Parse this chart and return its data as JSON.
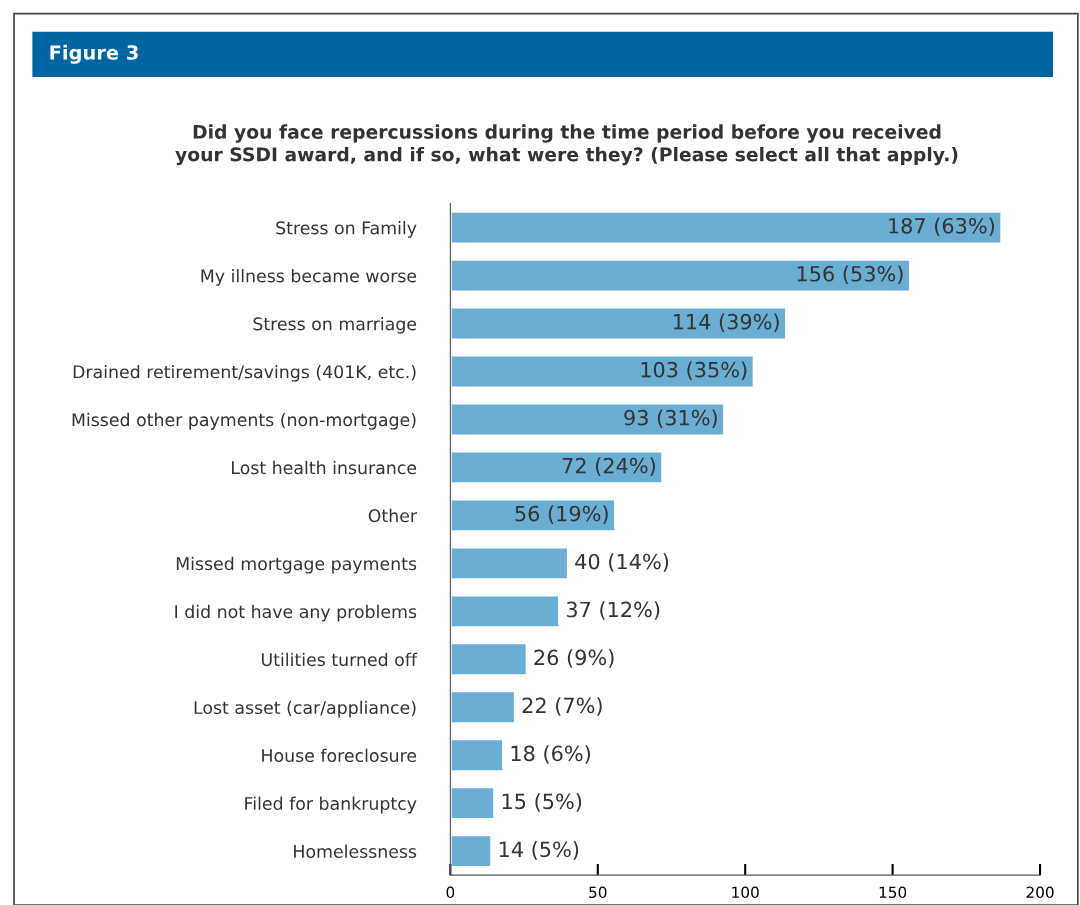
{
  "chart_data": {
    "type": "bar",
    "orientation": "horizontal",
    "title": "Figure 3",
    "subtitle": "Did you face repercussions during the time period before you received\nyour SSDI award, and if so, what were they? (Please select all that apply.)",
    "categories": [
      "Stress on Family",
      "My illness became worse",
      "Stress on marriage",
      "Drained retirement/savings (401K, etc.)",
      "Missed other payments (non-mortgage)",
      "Lost health insurance",
      "Other",
      "Missed mortgage payments",
      "I did not have any problems",
      "Utilities turned off",
      "Lost asset (car/appliance)",
      "House foreclosure",
      "Filed for bankruptcy",
      "Homelessness"
    ],
    "values": [
      187,
      156,
      114,
      103,
      93,
      72,
      56,
      40,
      37,
      26,
      22,
      18,
      15,
      14
    ],
    "value_labels": [
      "187 (63%)",
      "156 (53%)",
      "114 (39%)",
      "103 (35%)",
      "93 (31%)",
      "72 (24%)",
      "56 (19%)",
      "40 (14%)",
      "37 (12%)",
      "26 (9%)",
      "22 (7%)",
      "18 (6%)",
      "15 (5%)",
      "14 (5%)"
    ],
    "color": "#6aaed3",
    "xlim": [
      0,
      200
    ],
    "xticks": [
      0,
      50,
      100,
      150,
      200
    ],
    "grid": false
  }
}
